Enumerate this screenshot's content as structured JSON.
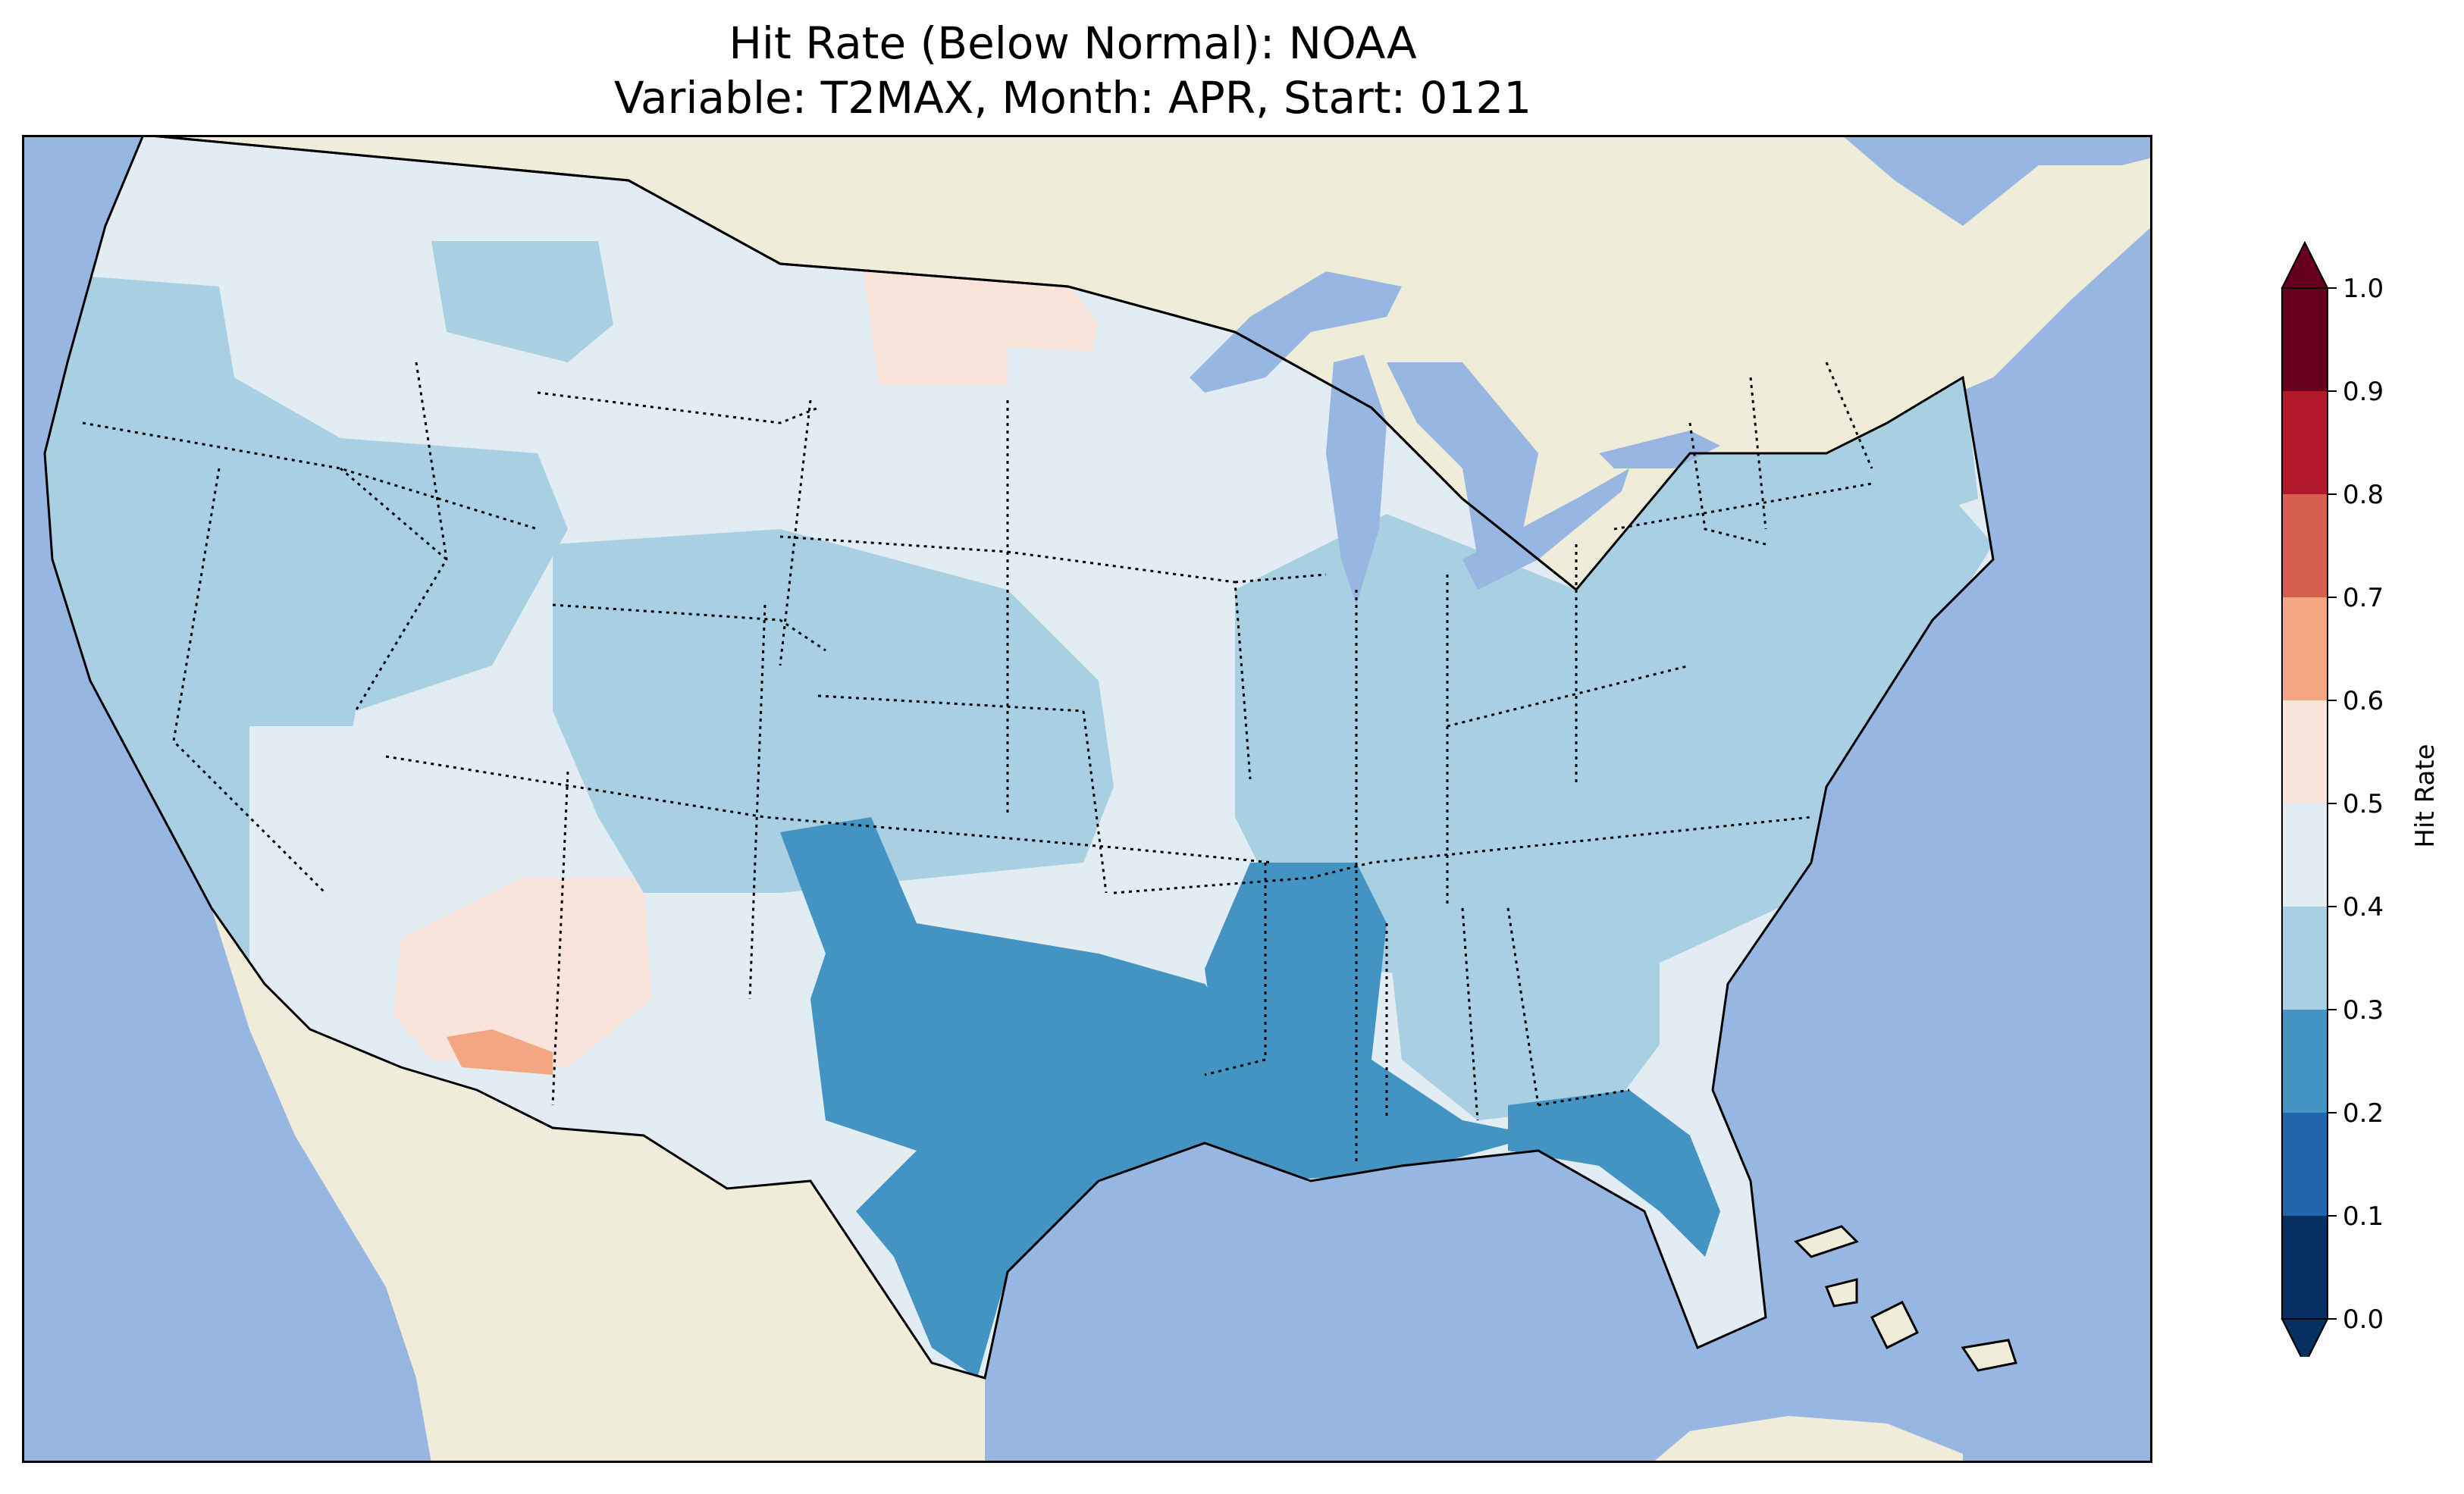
{
  "title": {
    "line1": "Hit Rate (Below Normal): NOAA",
    "line2": "Variable: T2MAX, Month: APR, Start: 0121"
  },
  "colorbar": {
    "label": "Hit Rate",
    "ticks": [
      "0.0",
      "0.1",
      "0.2",
      "0.3",
      "0.4",
      "0.5",
      "0.6",
      "0.7",
      "0.8",
      "0.9",
      "1.0"
    ],
    "bins": [
      {
        "range": [
          0.0,
          0.1
        ],
        "color": "#053061"
      },
      {
        "range": [
          0.1,
          0.2
        ],
        "color": "#2166ac"
      },
      {
        "range": [
          0.2,
          0.3
        ],
        "color": "#4393c3"
      },
      {
        "range": [
          0.3,
          0.4
        ],
        "color": "#a9cfe3"
      },
      {
        "range": [
          0.4,
          0.5
        ],
        "color": "#e1ecf3"
      },
      {
        "range": [
          0.5,
          0.6
        ],
        "color": "#f8e4da"
      },
      {
        "range": [
          0.6,
          0.7
        ],
        "color": "#f4a582"
      },
      {
        "range": [
          0.7,
          0.8
        ],
        "color": "#d6604d"
      },
      {
        "range": [
          0.8,
          0.9
        ],
        "color": "#b2182b"
      },
      {
        "range": [
          0.9,
          1.0
        ],
        "color": "#67001f"
      }
    ],
    "extend": "both"
  },
  "map": {
    "ocean_color": "#97b6e1",
    "land_color": "#efedd9",
    "lake_color": "#97b6e1",
    "regions": [
      {
        "name": "northwest-interior",
        "color": "#e1ecf3"
      },
      {
        "name": "pacific-coast",
        "color": "#a9cfe3"
      },
      {
        "name": "great-basin-east",
        "color": "#a9cfe3"
      },
      {
        "name": "southwest",
        "color": "#e1ecf3"
      },
      {
        "name": "arizona-new-mexico",
        "color": "#f8e4da"
      },
      {
        "name": "arizona-border",
        "color": "#f4a582"
      },
      {
        "name": "north-dakota",
        "color": "#f8e4da"
      },
      {
        "name": "upper-midwest",
        "color": "#e1ecf3"
      },
      {
        "name": "central-plains",
        "color": "#a9cfe3"
      },
      {
        "name": "southern-plains",
        "color": "#4393c3"
      },
      {
        "name": "lower-mississippi",
        "color": "#4393c3"
      },
      {
        "name": "southeast",
        "color": "#a9cfe3"
      },
      {
        "name": "east",
        "color": "#a9cfe3"
      },
      {
        "name": "florida",
        "color": "#4393c3"
      },
      {
        "name": "new-england",
        "color": "#a9cfe3"
      }
    ]
  }
}
